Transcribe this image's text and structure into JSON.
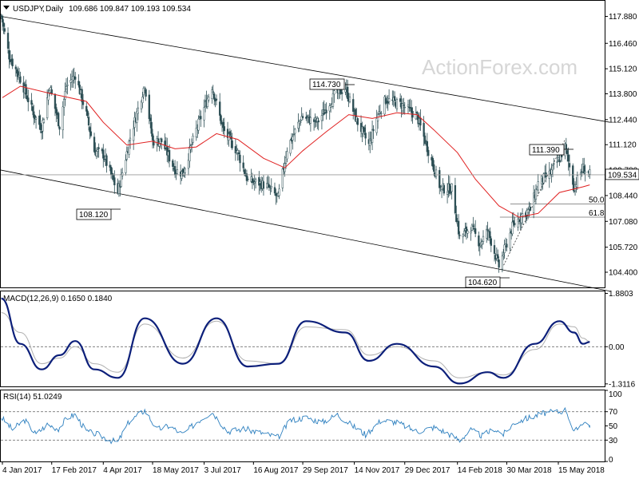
{
  "chart_data": {
    "type": "candlestick",
    "symbol": "USDJPY",
    "timeframe": "Daily",
    "ohlc_readout": "109.686 109.847 109.193 109.534",
    "watermark": "ActionForex.com",
    "current_price": 109.534,
    "current_price_label": "109.534",
    "price_axis": {
      "ylim": [
        103.6,
        118.7
      ],
      "ticks": [
        "117.880",
        "116.460",
        "115.120",
        "113.800",
        "112.440",
        "111.120",
        "109.780",
        "108.440",
        "107.080",
        "105.720",
        "104.400"
      ]
    },
    "x_axis": {
      "tick_labels": [
        "4 Jan 2017",
        "17 Feb 2017",
        "4 Apr 2017",
        "18 May 2017",
        "3 Jul 2017",
        "16 Aug 2017",
        "29 Sep 2017",
        "14 Nov 2017",
        "29 Dec 2017",
        "14 Feb 2018",
        "30 Mar 2018",
        "15 May 2018"
      ]
    },
    "close_series": [
      {
        "date": "2017-01-03",
        "close": 117.9
      },
      {
        "date": "2017-01-10",
        "close": 115.8
      },
      {
        "date": "2017-01-20",
        "close": 114.6
      },
      {
        "date": "2017-02-01",
        "close": 112.7
      },
      {
        "date": "2017-02-08",
        "close": 112.0
      },
      {
        "date": "2017-02-15",
        "close": 114.2
      },
      {
        "date": "2017-02-24",
        "close": 112.1
      },
      {
        "date": "2017-03-02",
        "close": 114.2
      },
      {
        "date": "2017-03-10",
        "close": 114.8
      },
      {
        "date": "2017-03-20",
        "close": 112.7
      },
      {
        "date": "2017-03-27",
        "close": 110.8
      },
      {
        "date": "2017-04-04",
        "close": 110.6
      },
      {
        "date": "2017-04-17",
        "close": 108.6
      },
      {
        "date": "2017-04-28",
        "close": 111.5
      },
      {
        "date": "2017-05-11",
        "close": 114.3
      },
      {
        "date": "2017-05-18",
        "close": 111.3
      },
      {
        "date": "2017-05-26",
        "close": 111.3
      },
      {
        "date": "2017-06-07",
        "close": 109.8
      },
      {
        "date": "2017-06-14",
        "close": 109.6
      },
      {
        "date": "2017-06-26",
        "close": 111.9
      },
      {
        "date": "2017-07-10",
        "close": 114.2
      },
      {
        "date": "2017-07-20",
        "close": 111.9
      },
      {
        "date": "2017-08-02",
        "close": 110.7
      },
      {
        "date": "2017-08-11",
        "close": 109.2
      },
      {
        "date": "2017-08-21",
        "close": 109.1
      },
      {
        "date": "2017-08-29",
        "close": 108.9
      },
      {
        "date": "2017-09-07",
        "close": 108.3
      },
      {
        "date": "2017-09-15",
        "close": 110.9
      },
      {
        "date": "2017-09-28",
        "close": 112.6
      },
      {
        "date": "2017-10-12",
        "close": 112.3
      },
      {
        "date": "2017-10-27",
        "close": 113.7
      },
      {
        "date": "2017-11-06",
        "close": 114.1
      },
      {
        "date": "2017-11-16",
        "close": 112.4
      },
      {
        "date": "2017-11-27",
        "close": 111.1
      },
      {
        "date": "2017-12-05",
        "close": 112.7
      },
      {
        "date": "2017-12-12",
        "close": 113.5
      },
      {
        "date": "2017-12-27",
        "close": 113.2
      },
      {
        "date": "2018-01-09",
        "close": 112.6
      },
      {
        "date": "2018-01-19",
        "close": 110.8
      },
      {
        "date": "2018-01-30",
        "close": 108.8
      },
      {
        "date": "2018-02-09",
        "close": 108.8
      },
      {
        "date": "2018-02-16",
        "close": 106.2
      },
      {
        "date": "2018-02-26",
        "close": 106.8
      },
      {
        "date": "2018-03-06",
        "close": 105.9
      },
      {
        "date": "2018-03-13",
        "close": 106.6
      },
      {
        "date": "2018-03-23",
        "close": 104.7
      },
      {
        "date": "2018-04-04",
        "close": 106.8
      },
      {
        "date": "2018-04-12",
        "close": 107.4
      },
      {
        "date": "2018-04-20",
        "close": 107.7
      },
      {
        "date": "2018-04-27",
        "close": 109.1
      },
      {
        "date": "2018-05-08",
        "close": 109.6
      },
      {
        "date": "2018-05-16",
        "close": 110.4
      },
      {
        "date": "2018-05-21",
        "close": 111.0
      },
      {
        "date": "2018-05-29",
        "close": 108.9
      },
      {
        "date": "2018-06-06",
        "close": 109.9
      },
      {
        "date": "2018-06-12",
        "close": 109.534
      }
    ],
    "moving_average": [
      {
        "date": "2017-01-04",
        "value": 113.6
      },
      {
        "date": "2017-01-20",
        "value": 114.2
      },
      {
        "date": "2017-02-17",
        "value": 113.8
      },
      {
        "date": "2017-03-20",
        "value": 113.4
      },
      {
        "date": "2017-04-04",
        "value": 112.3
      },
      {
        "date": "2017-04-25",
        "value": 111.1
      },
      {
        "date": "2017-05-18",
        "value": 111.3
      },
      {
        "date": "2017-06-07",
        "value": 110.9
      },
      {
        "date": "2017-06-26",
        "value": 111.0
      },
      {
        "date": "2017-07-14",
        "value": 111.7
      },
      {
        "date": "2017-08-02",
        "value": 111.4
      },
      {
        "date": "2017-08-25",
        "value": 110.4
      },
      {
        "date": "2017-09-13",
        "value": 109.9
      },
      {
        "date": "2017-09-29",
        "value": 110.8
      },
      {
        "date": "2017-10-20",
        "value": 111.8
      },
      {
        "date": "2017-11-09",
        "value": 112.7
      },
      {
        "date": "2017-11-30",
        "value": 112.5
      },
      {
        "date": "2017-12-22",
        "value": 112.8
      },
      {
        "date": "2018-01-09",
        "value": 112.7
      },
      {
        "date": "2018-01-24",
        "value": 111.9
      },
      {
        "date": "2018-02-14",
        "value": 110.7
      },
      {
        "date": "2018-03-02",
        "value": 109.3
      },
      {
        "date": "2018-03-23",
        "value": 107.9
      },
      {
        "date": "2018-04-10",
        "value": 107.3
      },
      {
        "date": "2018-04-27",
        "value": 107.5
      },
      {
        "date": "2018-05-16",
        "value": 108.6
      },
      {
        "date": "2018-06-06",
        "value": 108.9
      },
      {
        "date": "2018-06-12",
        "value": 109.0
      }
    ],
    "annotations": [
      {
        "label": "114.730",
        "date": "2017-11-01",
        "price": 114.73
      },
      {
        "label": "108.120",
        "date": "2017-04-17",
        "price": 108.12
      },
      {
        "label": "104.620",
        "date": "2018-03-26",
        "price": 104.62
      },
      {
        "label": "111.390",
        "date": "2018-05-21",
        "price": 111.39
      }
    ],
    "fib_levels": [
      {
        "label": "50.0",
        "price": 108.0
      },
      {
        "label": "61.8",
        "price": 107.3
      }
    ],
    "channel": {
      "upper": [
        {
          "date": "2017-01-01",
          "price": 117.9
        },
        {
          "date": "2018-06-30",
          "price": 112.3
        }
      ],
      "lower": [
        {
          "date": "2017-01-01",
          "price": 109.8
        },
        {
          "date": "2018-06-30",
          "price": 103.4
        }
      ]
    },
    "macd": {
      "label": "MACD(12,26,9) 0.1650 0.1840",
      "ylim": [
        -1.4,
        1.95
      ],
      "ticks": [
        "1.8803",
        "0.00",
        "-1.3116"
      ],
      "zero_level": 0,
      "main_line": [
        {
          "date": "2017-01-03",
          "value": 1.7
        },
        {
          "date": "2017-01-20",
          "value": 0.1
        },
        {
          "date": "2017-02-08",
          "value": -0.8
        },
        {
          "date": "2017-02-24",
          "value": -0.3
        },
        {
          "date": "2017-03-10",
          "value": 0.2
        },
        {
          "date": "2017-03-27",
          "value": -0.8
        },
        {
          "date": "2017-04-17",
          "value": -1.1
        },
        {
          "date": "2017-05-11",
          "value": 1.0
        },
        {
          "date": "2017-06-14",
          "value": -0.6
        },
        {
          "date": "2017-07-14",
          "value": 1.0
        },
        {
          "date": "2017-08-11",
          "value": -0.7
        },
        {
          "date": "2017-09-07",
          "value": -0.6
        },
        {
          "date": "2017-10-02",
          "value": 0.9
        },
        {
          "date": "2017-11-06",
          "value": 0.5
        },
        {
          "date": "2017-11-27",
          "value": -0.5
        },
        {
          "date": "2017-12-22",
          "value": 0.1
        },
        {
          "date": "2018-01-24",
          "value": -0.7
        },
        {
          "date": "2018-02-16",
          "value": -1.3
        },
        {
          "date": "2018-03-13",
          "value": -0.9
        },
        {
          "date": "2018-03-27",
          "value": -1.1
        },
        {
          "date": "2018-04-24",
          "value": 0.1
        },
        {
          "date": "2018-05-16",
          "value": 0.9
        },
        {
          "date": "2018-05-29",
          "value": 0.5
        },
        {
          "date": "2018-06-06",
          "value": 0.1
        },
        {
          "date": "2018-06-12",
          "value": 0.165
        }
      ],
      "signal_line": [
        {
          "date": "2017-01-03",
          "value": 1.2
        },
        {
          "date": "2017-01-20",
          "value": 0.5
        },
        {
          "date": "2017-02-08",
          "value": -0.6
        },
        {
          "date": "2017-02-24",
          "value": -0.4
        },
        {
          "date": "2017-03-10",
          "value": 0.0
        },
        {
          "date": "2017-03-27",
          "value": -0.6
        },
        {
          "date": "2017-04-17",
          "value": -0.9
        },
        {
          "date": "2017-05-11",
          "value": 0.8
        },
        {
          "date": "2017-06-14",
          "value": -0.4
        },
        {
          "date": "2017-07-14",
          "value": 0.9
        },
        {
          "date": "2017-08-11",
          "value": -0.5
        },
        {
          "date": "2017-09-07",
          "value": -0.6
        },
        {
          "date": "2017-10-02",
          "value": 0.7
        },
        {
          "date": "2017-11-06",
          "value": 0.6
        },
        {
          "date": "2017-11-27",
          "value": -0.3
        },
        {
          "date": "2017-12-22",
          "value": 0.0
        },
        {
          "date": "2018-01-24",
          "value": -0.5
        },
        {
          "date": "2018-02-16",
          "value": -1.1
        },
        {
          "date": "2018-03-13",
          "value": -0.9
        },
        {
          "date": "2018-03-27",
          "value": -1.0
        },
        {
          "date": "2018-04-24",
          "value": -0.1
        },
        {
          "date": "2018-05-16",
          "value": 0.8
        },
        {
          "date": "2018-05-29",
          "value": 0.7
        },
        {
          "date": "2018-06-06",
          "value": 0.3
        },
        {
          "date": "2018-06-12",
          "value": 0.184
        }
      ]
    },
    "rsi": {
      "label": "RSI(14) 51.0249",
      "ylim": [
        0,
        100
      ],
      "ticks": [
        "100",
        "70",
        "50",
        "30",
        "0"
      ],
      "levels": [
        70,
        30
      ],
      "series": [
        {
          "date": "2017-01-03",
          "value": 62
        },
        {
          "date": "2017-01-13",
          "value": 45
        },
        {
          "date": "2017-01-24",
          "value": 58
        },
        {
          "date": "2017-02-03",
          "value": 38
        },
        {
          "date": "2017-02-13",
          "value": 52
        },
        {
          "date": "2017-02-23",
          "value": 46
        },
        {
          "date": "2017-03-03",
          "value": 62
        },
        {
          "date": "2017-03-10",
          "value": 66
        },
        {
          "date": "2017-03-20",
          "value": 42
        },
        {
          "date": "2017-03-30",
          "value": 38
        },
        {
          "date": "2017-04-10",
          "value": 30
        },
        {
          "date": "2017-04-17",
          "value": 27
        },
        {
          "date": "2017-04-27",
          "value": 56
        },
        {
          "date": "2017-05-11",
          "value": 72
        },
        {
          "date": "2017-05-22",
          "value": 45
        },
        {
          "date": "2017-06-02",
          "value": 50
        },
        {
          "date": "2017-06-14",
          "value": 38
        },
        {
          "date": "2017-06-26",
          "value": 55
        },
        {
          "date": "2017-07-10",
          "value": 70
        },
        {
          "date": "2017-07-24",
          "value": 42
        },
        {
          "date": "2017-08-07",
          "value": 46
        },
        {
          "date": "2017-08-21",
          "value": 41
        },
        {
          "date": "2017-09-07",
          "value": 34
        },
        {
          "date": "2017-09-18",
          "value": 58
        },
        {
          "date": "2017-10-02",
          "value": 62
        },
        {
          "date": "2017-10-16",
          "value": 55
        },
        {
          "date": "2017-10-30",
          "value": 66
        },
        {
          "date": "2017-11-10",
          "value": 53
        },
        {
          "date": "2017-11-24",
          "value": 38
        },
        {
          "date": "2017-12-08",
          "value": 58
        },
        {
          "date": "2017-12-22",
          "value": 55
        },
        {
          "date": "2018-01-09",
          "value": 42
        },
        {
          "date": "2018-01-24",
          "value": 48
        },
        {
          "date": "2018-02-05",
          "value": 40
        },
        {
          "date": "2018-02-16",
          "value": 30
        },
        {
          "date": "2018-02-26",
          "value": 44
        },
        {
          "date": "2018-03-08",
          "value": 36
        },
        {
          "date": "2018-03-19",
          "value": 46
        },
        {
          "date": "2018-03-27",
          "value": 38
        },
        {
          "date": "2018-04-06",
          "value": 55
        },
        {
          "date": "2018-04-20",
          "value": 62
        },
        {
          "date": "2018-05-02",
          "value": 68
        },
        {
          "date": "2018-05-16",
          "value": 70
        },
        {
          "date": "2018-05-22",
          "value": 73
        },
        {
          "date": "2018-05-29",
          "value": 40
        },
        {
          "date": "2018-06-06",
          "value": 56
        },
        {
          "date": "2018-06-12",
          "value": 51.0249
        }
      ]
    }
  },
  "colors": {
    "background": "#ffffff",
    "candle_up": "#ffffff",
    "candle_down": "#2c4e54",
    "candle_outline": "#2c4e54",
    "ma": "#e02020",
    "macd_main": "#0c1f7a",
    "macd_signal": "#b0b0b0",
    "rsi": "#2c7fbf",
    "channel": "#000000",
    "grid_level": "#6f6f6f",
    "watermark": "#d6d6d6",
    "axis": "#000000"
  }
}
